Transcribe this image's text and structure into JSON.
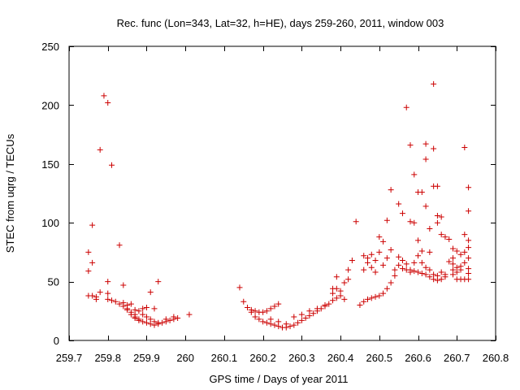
{
  "chart_data": {
    "type": "scatter",
    "title": "Rec. func (Lon=343, Lat=32, h=HE), days 259-260, 2011, window 003",
    "xlabel": "GPS time / Days of year 2011",
    "ylabel": "STEC from uqrg / TECUs",
    "xlim": [
      259.7,
      260.8
    ],
    "ylim": [
      0,
      250
    ],
    "xticks": [
      259.7,
      259.8,
      259.9,
      260,
      260.1,
      260.2,
      260.3,
      260.4,
      260.5,
      260.6,
      260.7,
      260.8
    ],
    "xtick_labels": [
      "259.7",
      "259.8",
      "259.9",
      "260",
      "260.1",
      "260.2",
      "260.3",
      "260.4",
      "260.5",
      "260.6",
      "260.7",
      "260.8"
    ],
    "yticks": [
      0,
      50,
      100,
      150,
      200,
      250
    ],
    "ytick_labels": [
      "0",
      "50",
      "100",
      "150",
      "200",
      "250"
    ],
    "marker": "+",
    "color": "#cc0000",
    "series": [
      {
        "name": "STEC",
        "points": [
          [
            259.75,
            75
          ],
          [
            259.75,
            59
          ],
          [
            259.76,
            98
          ],
          [
            259.76,
            66
          ],
          [
            259.75,
            38
          ],
          [
            259.76,
            38
          ],
          [
            259.77,
            37
          ],
          [
            259.77,
            35
          ],
          [
            259.78,
            41
          ],
          [
            259.78,
            162
          ],
          [
            259.79,
            208
          ],
          [
            259.8,
            202
          ],
          [
            259.81,
            149
          ],
          [
            259.83,
            81
          ],
          [
            259.84,
            47
          ],
          [
            259.8,
            50
          ],
          [
            259.8,
            40
          ],
          [
            259.8,
            35
          ],
          [
            259.81,
            34
          ],
          [
            259.82,
            33
          ],
          [
            259.83,
            31
          ],
          [
            259.84,
            29
          ],
          [
            259.85,
            27
          ],
          [
            259.86,
            24
          ],
          [
            259.87,
            22
          ],
          [
            259.87,
            20
          ],
          [
            259.88,
            18
          ],
          [
            259.89,
            16
          ],
          [
            259.9,
            15
          ],
          [
            259.91,
            14
          ],
          [
            259.92,
            13
          ],
          [
            259.93,
            14
          ],
          [
            259.94,
            15
          ],
          [
            259.95,
            16
          ],
          [
            259.96,
            17
          ],
          [
            259.97,
            18
          ],
          [
            259.98,
            19
          ],
          [
            259.84,
            32
          ],
          [
            259.85,
            30
          ],
          [
            259.86,
            31
          ],
          [
            259.87,
            26
          ],
          [
            259.88,
            25
          ],
          [
            259.89,
            27
          ],
          [
            259.9,
            28
          ],
          [
            259.91,
            41
          ],
          [
            259.92,
            27
          ],
          [
            259.93,
            50
          ],
          [
            259.95,
            18
          ],
          [
            259.97,
            20
          ],
          [
            260.01,
            22
          ],
          [
            259.85,
            26
          ],
          [
            259.86,
            22
          ],
          [
            259.87,
            19
          ],
          [
            259.88,
            17
          ],
          [
            259.89,
            22
          ],
          [
            259.9,
            20
          ],
          [
            259.91,
            18
          ],
          [
            259.92,
            16
          ],
          [
            259.93,
            15
          ],
          [
            260.14,
            45
          ],
          [
            260.15,
            33
          ],
          [
            260.16,
            28
          ],
          [
            260.17,
            26
          ],
          [
            260.18,
            25
          ],
          [
            260.19,
            24
          ],
          [
            260.2,
            24
          ],
          [
            260.21,
            25
          ],
          [
            260.22,
            27
          ],
          [
            260.23,
            29
          ],
          [
            260.24,
            31
          ],
          [
            260.17,
            24
          ],
          [
            260.18,
            20
          ],
          [
            260.19,
            18
          ],
          [
            260.2,
            16
          ],
          [
            260.21,
            15
          ],
          [
            260.22,
            14
          ],
          [
            260.23,
            13
          ],
          [
            260.24,
            12
          ],
          [
            260.25,
            11
          ],
          [
            260.26,
            11
          ],
          [
            260.27,
            12
          ],
          [
            260.28,
            13
          ],
          [
            260.29,
            15
          ],
          [
            260.3,
            17
          ],
          [
            260.31,
            19
          ],
          [
            260.32,
            21
          ],
          [
            260.33,
            23
          ],
          [
            260.34,
            25
          ],
          [
            260.35,
            27
          ],
          [
            260.36,
            29
          ],
          [
            260.37,
            31
          ],
          [
            260.38,
            34
          ],
          [
            260.39,
            36
          ],
          [
            260.4,
            38
          ],
          [
            260.22,
            18
          ],
          [
            260.24,
            16
          ],
          [
            260.26,
            14
          ],
          [
            260.28,
            20
          ],
          [
            260.3,
            22
          ],
          [
            260.32,
            25
          ],
          [
            260.34,
            27
          ],
          [
            260.36,
            30
          ],
          [
            260.38,
            40
          ],
          [
            260.38,
            44
          ],
          [
            260.39,
            44
          ],
          [
            260.39,
            54
          ],
          [
            260.4,
            42
          ],
          [
            260.41,
            49
          ],
          [
            260.41,
            35
          ],
          [
            260.42,
            52
          ],
          [
            260.42,
            60
          ],
          [
            260.43,
            68
          ],
          [
            260.44,
            101
          ],
          [
            260.45,
            30
          ],
          [
            260.46,
            33
          ],
          [
            260.47,
            35
          ],
          [
            260.48,
            36
          ],
          [
            260.49,
            37
          ],
          [
            260.5,
            38
          ],
          [
            260.51,
            40
          ],
          [
            260.52,
            44
          ],
          [
            260.53,
            49
          ],
          [
            260.54,
            55
          ],
          [
            260.46,
            60
          ],
          [
            260.46,
            72
          ],
          [
            260.47,
            70
          ],
          [
            260.47,
            66
          ],
          [
            260.48,
            73
          ],
          [
            260.48,
            62
          ],
          [
            260.49,
            58
          ],
          [
            260.49,
            68
          ],
          [
            260.5,
            88
          ],
          [
            260.5,
            75
          ],
          [
            260.51,
            84
          ],
          [
            260.51,
            64
          ],
          [
            260.52,
            102
          ],
          [
            260.52,
            70
          ],
          [
            260.53,
            128
          ],
          [
            260.53,
            77
          ],
          [
            260.54,
            60
          ],
          [
            260.55,
            116
          ],
          [
            260.55,
            71
          ],
          [
            260.56,
            108
          ],
          [
            260.56,
            68
          ],
          [
            260.57,
            198
          ],
          [
            260.57,
            65
          ],
          [
            260.58,
            166
          ],
          [
            260.58,
            101
          ],
          [
            260.59,
            141
          ],
          [
            260.59,
            100
          ],
          [
            260.6,
            126
          ],
          [
            260.6,
            85
          ],
          [
            260.61,
            126
          ],
          [
            260.61,
            76
          ],
          [
            260.62,
            167
          ],
          [
            260.62,
            154
          ],
          [
            260.62,
            114
          ],
          [
            260.63,
            95
          ],
          [
            260.63,
            75
          ],
          [
            260.64,
            218
          ],
          [
            260.64,
            163
          ],
          [
            260.64,
            131
          ],
          [
            260.65,
            131
          ],
          [
            260.65,
            106
          ],
          [
            260.65,
            100
          ],
          [
            260.66,
            105
          ],
          [
            260.66,
            90
          ],
          [
            260.67,
            88
          ],
          [
            260.68,
            86
          ],
          [
            260.58,
            60
          ],
          [
            260.59,
            59
          ],
          [
            260.6,
            58
          ],
          [
            260.61,
            57
          ],
          [
            260.62,
            56
          ],
          [
            260.63,
            54
          ],
          [
            260.64,
            52
          ],
          [
            260.65,
            51
          ],
          [
            260.66,
            52
          ],
          [
            260.67,
            54
          ],
          [
            260.69,
            78
          ],
          [
            260.69,
            65
          ],
          [
            260.7,
            62
          ],
          [
            260.71,
            73
          ],
          [
            260.72,
            75
          ],
          [
            260.72,
            164
          ],
          [
            260.72,
            90
          ],
          [
            260.73,
            85
          ],
          [
            260.73,
            130
          ],
          [
            260.73,
            110
          ],
          [
            260.73,
            79
          ],
          [
            260.73,
            70
          ],
          [
            260.73,
            61
          ],
          [
            260.73,
            57
          ],
          [
            260.73,
            52
          ],
          [
            260.69,
            70
          ],
          [
            260.69,
            56
          ],
          [
            260.7,
            52
          ],
          [
            260.71,
            52
          ],
          [
            260.72,
            52
          ],
          [
            260.55,
            64
          ],
          [
            260.56,
            61
          ],
          [
            260.57,
            60
          ],
          [
            260.58,
            58
          ],
          [
            260.59,
            66
          ],
          [
            260.6,
            72
          ],
          [
            260.61,
            66
          ],
          [
            260.62,
            62
          ],
          [
            260.63,
            60
          ],
          [
            260.64,
            56
          ],
          [
            260.65,
            55
          ],
          [
            260.66,
            58
          ],
          [
            260.67,
            56
          ],
          [
            260.68,
            67
          ],
          [
            260.69,
            60
          ],
          [
            260.7,
            58
          ],
          [
            260.71,
            63
          ],
          [
            260.72,
            66
          ],
          [
            260.7,
            76
          ],
          [
            260.71,
            60
          ]
        ]
      }
    ]
  }
}
